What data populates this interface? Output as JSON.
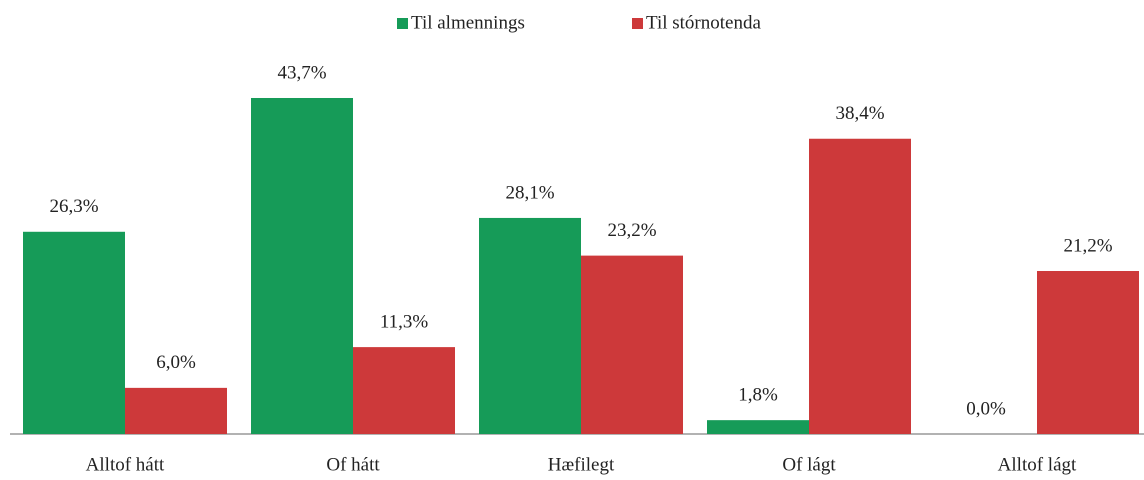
{
  "chart_data": {
    "type": "bar",
    "categories": [
      "Alltof hátt",
      "Of hátt",
      "Hæfilegt",
      "Of lágt",
      "Alltof lágt"
    ],
    "series": [
      {
        "name": "Til almennings",
        "color": "#169b58",
        "values": [
          26.3,
          43.7,
          28.1,
          1.8,
          0.0
        ],
        "value_labels": [
          "26,3%",
          "43,7%",
          "28,1%",
          "1,8%",
          "0,0%"
        ]
      },
      {
        "name": "Til stórnotenda",
        "color": "#cd393a",
        "values": [
          6.0,
          11.3,
          23.2,
          38.4,
          21.2
        ],
        "value_labels": [
          "6,0%",
          "11,3%",
          "23,2%",
          "38,4%",
          "21,2%"
        ]
      }
    ],
    "ylim": [
      0,
      45
    ],
    "legend": "top"
  }
}
